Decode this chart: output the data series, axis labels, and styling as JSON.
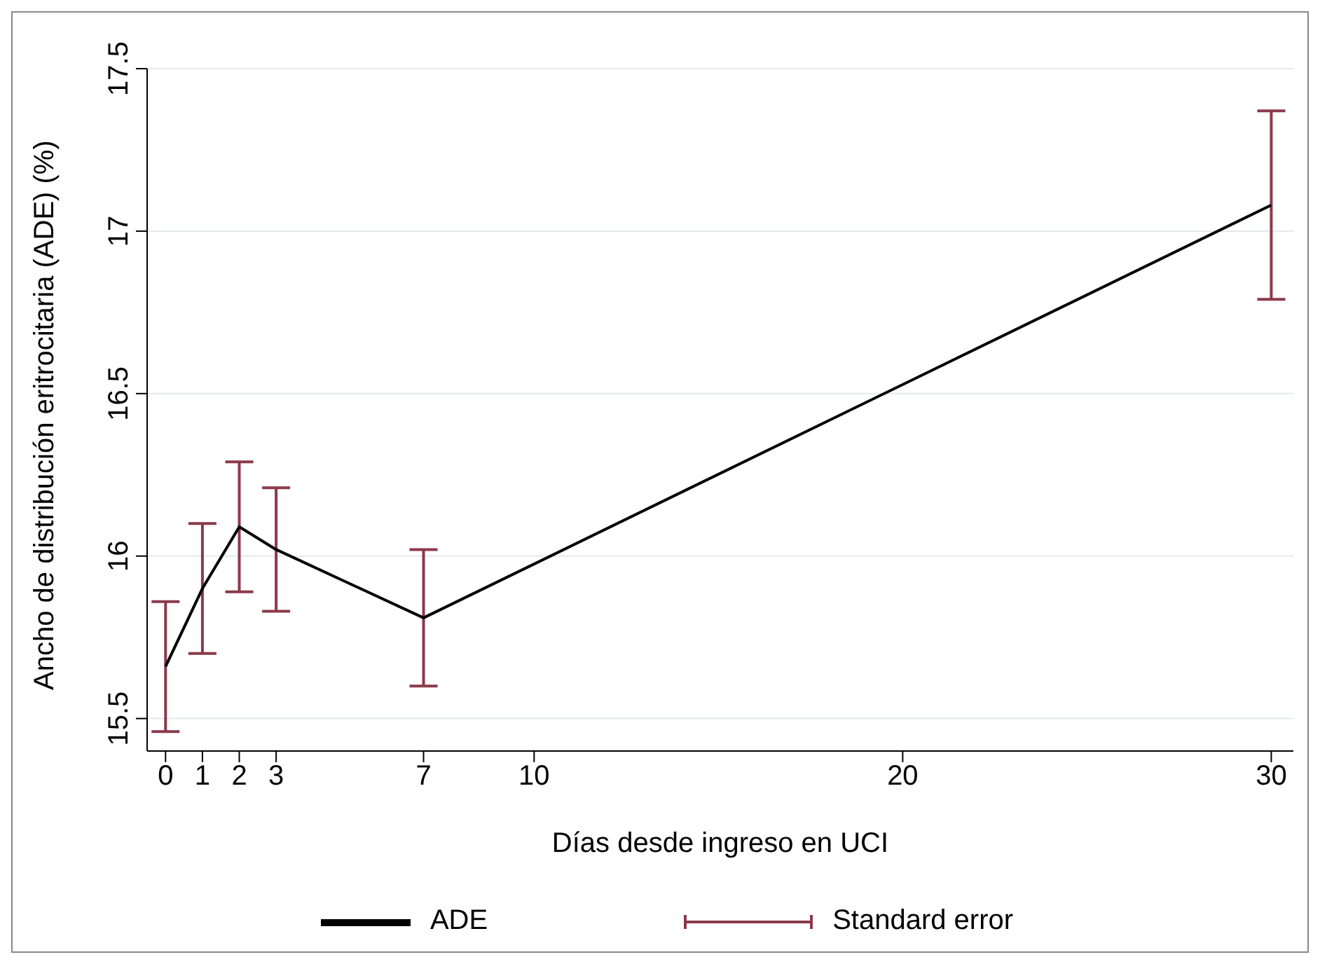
{
  "chart_data": {
    "type": "line",
    "xlabel": "Días desde ingreso en UCI",
    "ylabel": "Ancho de distribución eritrocitaria (ADE) (%)",
    "x": [
      0,
      1,
      2,
      3,
      7,
      30
    ],
    "series": [
      {
        "name": "ADE",
        "color": "#000000",
        "values": [
          15.66,
          15.9,
          16.09,
          16.02,
          15.81,
          17.08
        ],
        "errors": [
          0.2,
          0.2,
          0.2,
          0.19,
          0.21,
          0.29
        ]
      }
    ],
    "annotations": [
      "Standard error"
    ],
    "xlim": [
      -0.5,
      30.6
    ],
    "xticks": [
      0,
      1,
      2,
      3,
      7,
      10,
      20,
      30
    ],
    "ylim": [
      15.4,
      17.5
    ],
    "yticks": [
      15.5,
      16,
      16.5,
      17,
      17.5
    ],
    "grid": "y",
    "legend": "bottom"
  }
}
